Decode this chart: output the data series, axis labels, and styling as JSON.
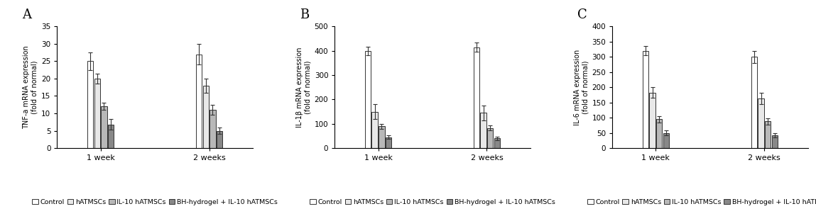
{
  "panels": [
    {
      "label": "A",
      "ylabel": "TNF-a mRNA expression\n(fold of normal)",
      "ylim": [
        0,
        35
      ],
      "yticks": [
        0,
        5,
        10,
        15,
        20,
        25,
        30,
        35
      ],
      "groups": [
        "1 week",
        "2 weeks"
      ],
      "values": [
        [
          25.0,
          20.0,
          12.0,
          6.8
        ],
        [
          27.0,
          18.0,
          11.0,
          5.0
        ]
      ],
      "errors": [
        [
          2.5,
          1.5,
          1.0,
          1.5
        ],
        [
          3.0,
          2.0,
          1.5,
          1.0
        ]
      ]
    },
    {
      "label": "B",
      "ylabel": "IL-1β mRNA expression\n(fold of normal)",
      "ylim": [
        0,
        500
      ],
      "yticks": [
        0,
        100,
        200,
        300,
        400,
        500
      ],
      "groups": [
        "1 week",
        "2 weeks"
      ],
      "values": [
        [
          400.0,
          150.0,
          90.0,
          45.0
        ],
        [
          415.0,
          145.0,
          82.0,
          40.0
        ]
      ],
      "errors": [
        [
          18.0,
          30.0,
          10.0,
          7.0
        ],
        [
          20.0,
          30.0,
          10.0,
          7.0
        ]
      ]
    },
    {
      "label": "C",
      "ylabel": "IL-6 mRNA expression\n(fold of normal)",
      "ylim": [
        0,
        400
      ],
      "yticks": [
        0,
        50,
        100,
        150,
        200,
        250,
        300,
        350,
        400
      ],
      "groups": [
        "1 week",
        "2 weeks"
      ],
      "values": [
        [
          320.0,
          183.0,
          95.0,
          50.0
        ],
        [
          300.0,
          163.0,
          88.0,
          42.0
        ]
      ],
      "errors": [
        [
          15.0,
          18.0,
          10.0,
          8.0
        ],
        [
          20.0,
          18.0,
          10.0,
          8.0
        ]
      ]
    }
  ],
  "bar_colors": [
    "#ffffff",
    "#e8e8e8",
    "#b8b8b8",
    "#888888"
  ],
  "bar_edgecolor": "#333333",
  "legend_labels": [
    "Control",
    "hATMSCs",
    "IL-10 hATMSCs",
    "BH-hydrogel + IL-10 hATMSCs"
  ],
  "bar_width": 0.055,
  "capsize": 2.5,
  "elinewidth": 0.8,
  "ecolor": "#333333",
  "ylabel_fontsize": 7,
  "xlabel_fontsize": 8,
  "tick_fontsize": 7.5,
  "legend_fontsize": 6.8,
  "label_fontsize": 13,
  "background_color": "#ffffff"
}
